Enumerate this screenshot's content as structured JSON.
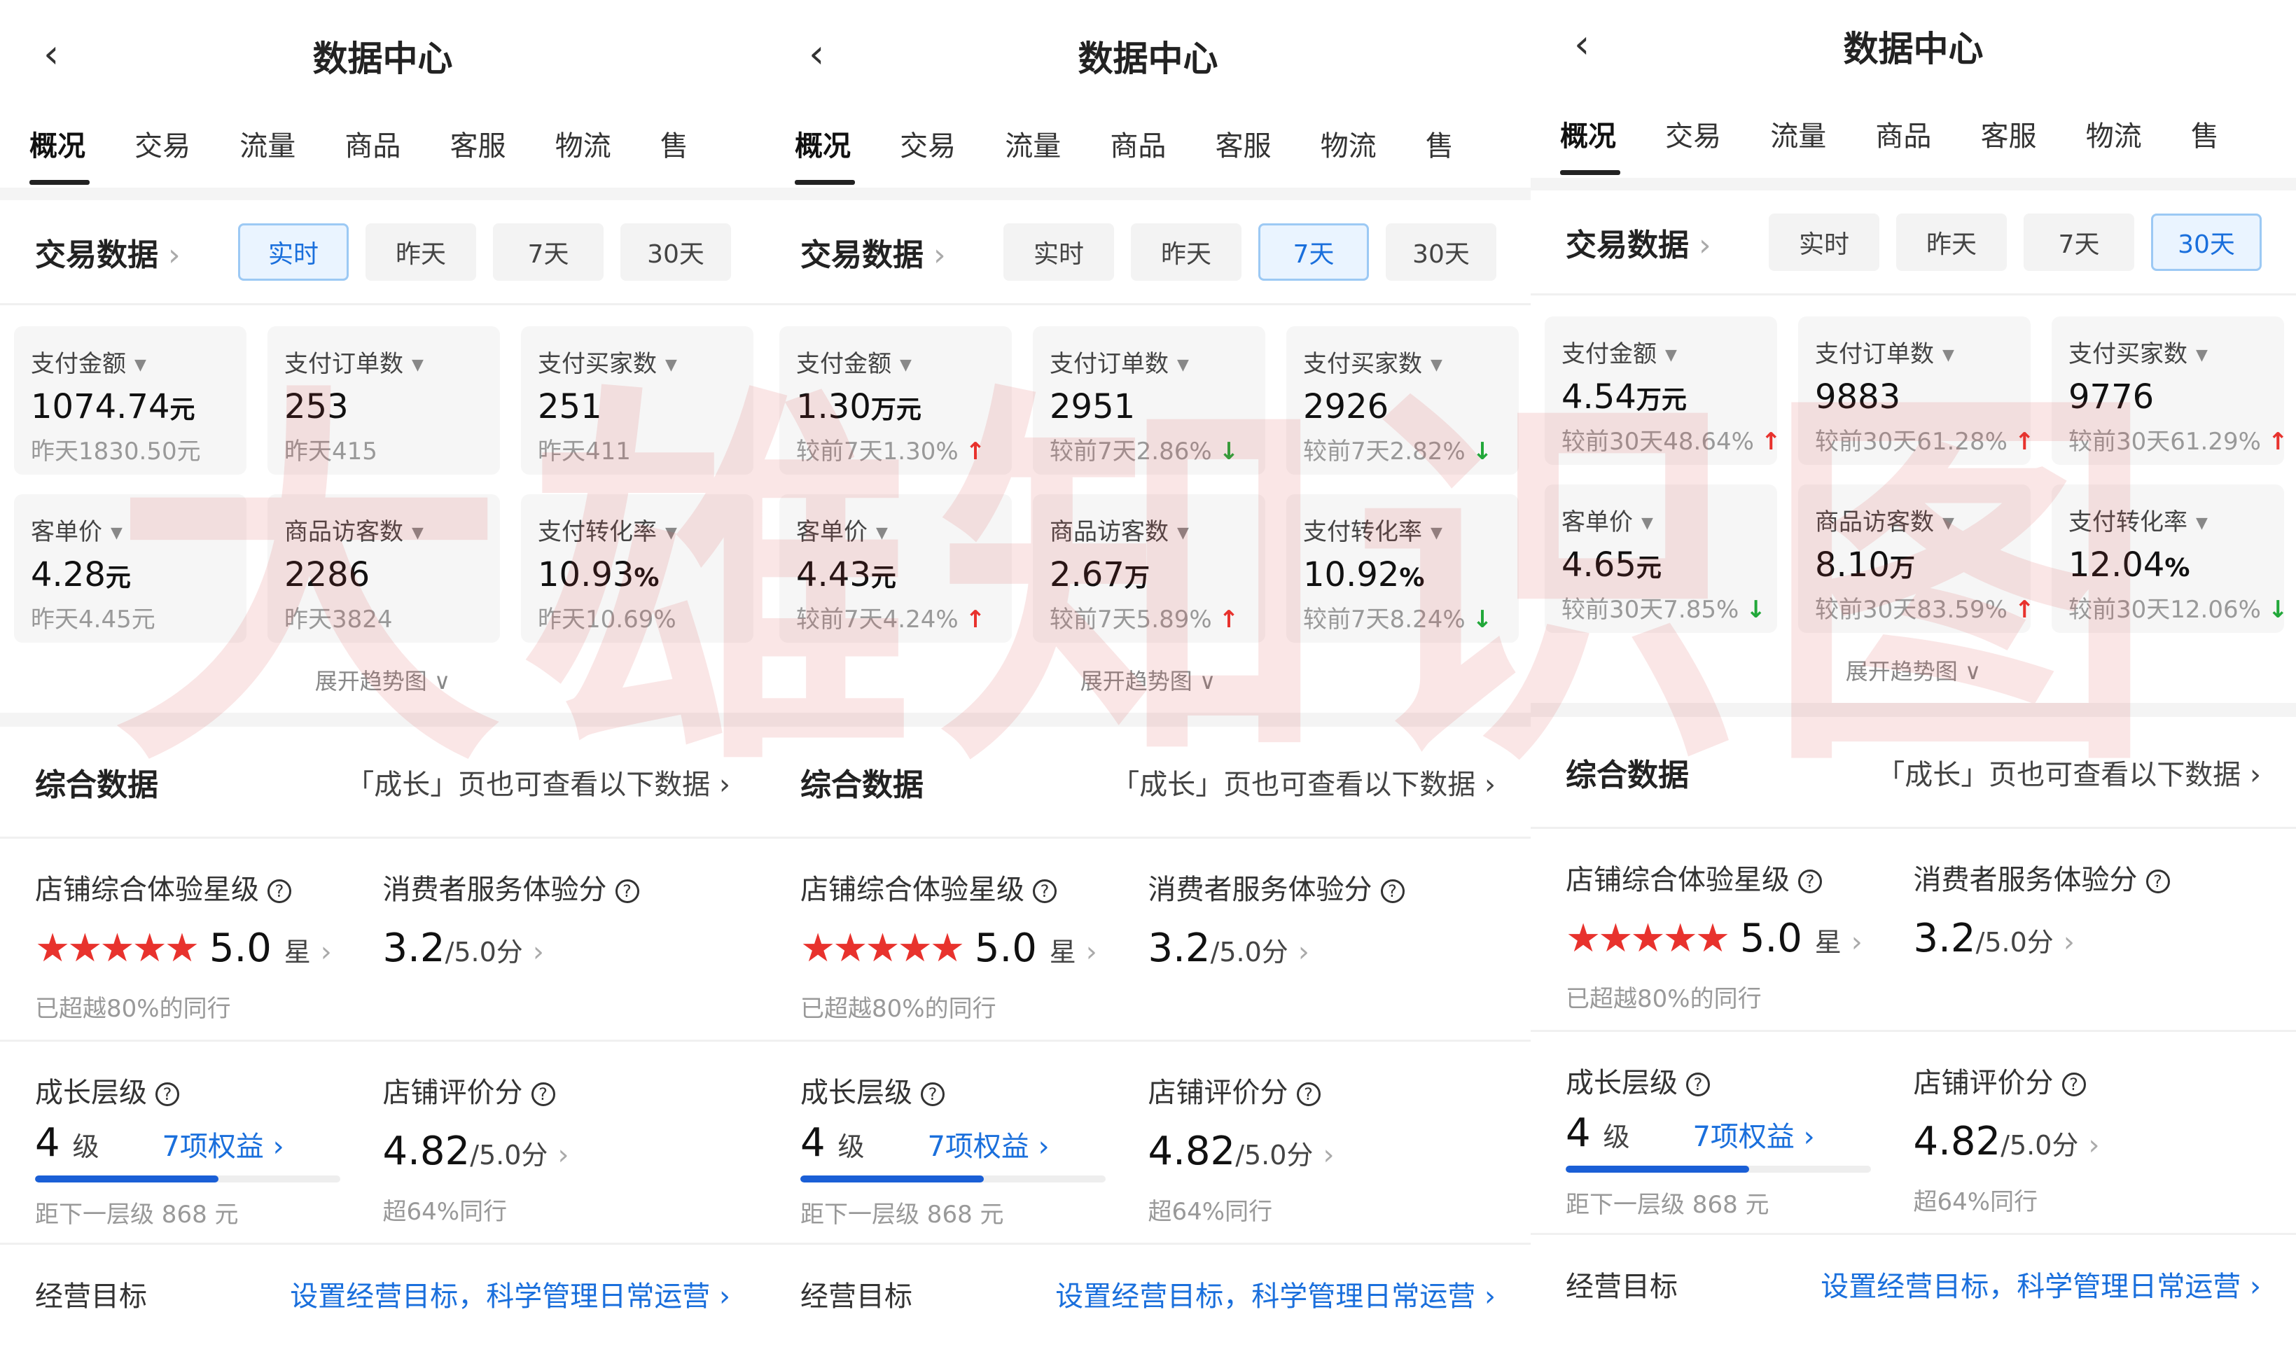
{
  "watermark": "大雄知识图",
  "colors": {
    "accent": "#1a6fdc",
    "up": "#e8322d",
    "down": "#22a83a",
    "star": "#e8322d"
  },
  "panels": [
    {
      "title": "数据中心",
      "tabs": [
        "概况",
        "交易",
        "流量",
        "商品",
        "客服",
        "物流",
        "售"
      ],
      "active_tab": 0,
      "trade_title": "交易数据",
      "ranges": [
        "实时",
        "昨天",
        "7天",
        "30天"
      ],
      "selected_range": 0,
      "cards": [
        {
          "label": "支付金额",
          "value": "1074.74",
          "unit": "元",
          "compare": "昨天1830.50元",
          "trend": ""
        },
        {
          "label": "支付订单数",
          "value": "253",
          "unit": "",
          "compare": "昨天415",
          "trend": ""
        },
        {
          "label": "支付买家数",
          "value": "251",
          "unit": "",
          "compare": "昨天411",
          "trend": ""
        },
        {
          "label": "客单价",
          "value": "4.28",
          "unit": "元",
          "compare": "昨天4.45元",
          "trend": ""
        },
        {
          "label": "商品访客数",
          "value": "2286",
          "unit": "",
          "compare": "昨天3824",
          "trend": ""
        },
        {
          "label": "支付转化率",
          "value": "10.93",
          "unit": "%",
          "compare": "昨天10.69%",
          "trend": ""
        }
      ],
      "expand": "展开趋势图"
    },
    {
      "title": "数据中心",
      "tabs": [
        "概况",
        "交易",
        "流量",
        "商品",
        "客服",
        "物流",
        "售"
      ],
      "active_tab": 0,
      "trade_title": "交易数据",
      "ranges": [
        "实时",
        "昨天",
        "7天",
        "30天"
      ],
      "selected_range": 2,
      "cards": [
        {
          "label": "支付金额",
          "value": "1.30",
          "unit": "万元",
          "compare": "较前7天1.30%",
          "trend": "up"
        },
        {
          "label": "支付订单数",
          "value": "2951",
          "unit": "",
          "compare": "较前7天2.86%",
          "trend": "down"
        },
        {
          "label": "支付买家数",
          "value": "2926",
          "unit": "",
          "compare": "较前7天2.82%",
          "trend": "down"
        },
        {
          "label": "客单价",
          "value": "4.43",
          "unit": "元",
          "compare": "较前7天4.24%",
          "trend": "up"
        },
        {
          "label": "商品访客数",
          "value": "2.67",
          "unit": "万",
          "compare": "较前7天5.89%",
          "trend": "up"
        },
        {
          "label": "支付转化率",
          "value": "10.92",
          "unit": "%",
          "compare": "较前7天8.24%",
          "trend": "down"
        }
      ],
      "expand": "展开趋势图"
    },
    {
      "title": "数据中心",
      "tabs": [
        "概况",
        "交易",
        "流量",
        "商品",
        "客服",
        "物流",
        "售"
      ],
      "active_tab": 0,
      "trade_title": "交易数据",
      "ranges": [
        "实时",
        "昨天",
        "7天",
        "30天"
      ],
      "selected_range": 3,
      "cards": [
        {
          "label": "支付金额",
          "value": "4.54",
          "unit": "万元",
          "compare": "较前30天48.64%",
          "trend": "up"
        },
        {
          "label": "支付订单数",
          "value": "9883",
          "unit": "",
          "compare": "较前30天61.28%",
          "trend": "up"
        },
        {
          "label": "支付买家数",
          "value": "9776",
          "unit": "",
          "compare": "较前30天61.29%",
          "trend": "up"
        },
        {
          "label": "客单价",
          "value": "4.65",
          "unit": "元",
          "compare": "较前30天7.85%",
          "trend": "down"
        },
        {
          "label": "商品访客数",
          "value": "8.10",
          "unit": "万",
          "compare": "较前30天83.59%",
          "trend": "up"
        },
        {
          "label": "支付转化率",
          "value": "12.04",
          "unit": "%",
          "compare": "较前30天12.06%",
          "trend": "down"
        }
      ],
      "expand": "展开趋势图"
    }
  ],
  "summary": {
    "title": "综合数据",
    "link": "「成长」页也可查看以下数据",
    "store_rating_label": "店铺综合体验星级",
    "store_rating": "5.0",
    "star_count": 5,
    "star_unit": "星",
    "store_rating_note": "已超越80%的同行",
    "service_label": "消费者服务体验分",
    "service_score": "3.2",
    "service_max": "/5.0分",
    "growth_label": "成长层级",
    "growth_level": "4",
    "growth_unit": "级",
    "growth_benefits": "7项权益",
    "growth_progress": 0.6,
    "growth_note": "距下一层级 868 元",
    "review_label": "店铺评价分",
    "review_score": "4.82",
    "review_max": "/5.0分",
    "review_note": "超64%同行",
    "goal_label": "经营目标",
    "goal_link": "设置经营目标，科学管理日常运营"
  }
}
